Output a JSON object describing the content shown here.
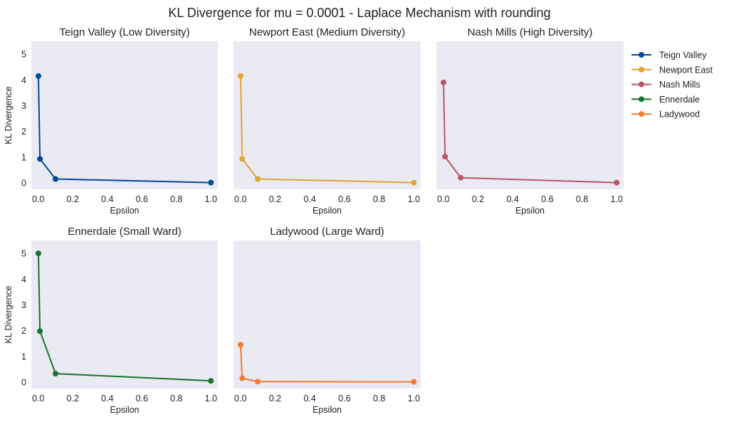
{
  "figure": {
    "title": "KL Divergence for mu = 0.0001 - Laplace Mechanism with rounding"
  },
  "chart_data": [
    {
      "type": "line",
      "title": "Teign Valley (Low Diversity)",
      "xlabel": "Epsilon",
      "ylabel": "KL Divergence",
      "xlim": [
        -0.04,
        1.04
      ],
      "ylim": [
        -0.25,
        5.5
      ],
      "xticks": [
        "0.0",
        "0.2",
        "0.4",
        "0.6",
        "0.8",
        "1.0"
      ],
      "yticks": [
        "0",
        "1",
        "2",
        "3",
        "4",
        "5"
      ],
      "grid": false,
      "series": [
        {
          "name": "Teign Valley",
          "color": "#004a97",
          "x": [
            0.001,
            0.01,
            0.1,
            1.0
          ],
          "y": [
            4.15,
            0.93,
            0.15,
            0.01
          ]
        }
      ]
    },
    {
      "type": "line",
      "title": "Newport East (Medium Diversity)",
      "xlabel": "Epsilon",
      "ylabel": "",
      "xlim": [
        -0.04,
        1.04
      ],
      "ylim": [
        -0.25,
        5.5
      ],
      "xticks": [
        "0.0",
        "0.2",
        "0.4",
        "0.6",
        "0.8",
        "1.0"
      ],
      "yticks": [],
      "grid": false,
      "series": [
        {
          "name": "Newport East",
          "color": "#e0a535",
          "x": [
            0.001,
            0.01,
            0.1,
            1.0
          ],
          "y": [
            4.15,
            0.93,
            0.15,
            0.01
          ]
        }
      ]
    },
    {
      "type": "line",
      "title": "Nash Mills (High Diversity)",
      "xlabel": "Epsilon",
      "ylabel": "",
      "xlim": [
        -0.04,
        1.04
      ],
      "ylim": [
        -0.25,
        5.5
      ],
      "xticks": [
        "0.0",
        "0.2",
        "0.4",
        "0.6",
        "0.8",
        "1.0"
      ],
      "yticks": [],
      "grid": false,
      "series": [
        {
          "name": "Nash Mills",
          "color": "#bb5566",
          "x": [
            0.001,
            0.01,
            0.1,
            1.0
          ],
          "y": [
            3.9,
            1.02,
            0.2,
            0.01
          ]
        }
      ]
    },
    {
      "type": "line",
      "title": "Ennerdale (Small Ward)",
      "xlabel": "Epsilon",
      "ylabel": "KL Divergence",
      "xlim": [
        -0.04,
        1.04
      ],
      "ylim": [
        -0.25,
        5.5
      ],
      "xticks": [
        "0.0",
        "0.2",
        "0.4",
        "0.6",
        "0.8",
        "1.0"
      ],
      "yticks": [
        "0",
        "1",
        "2",
        "3",
        "4",
        "5"
      ],
      "grid": false,
      "series": [
        {
          "name": "Ennerdale",
          "color": "#1a7230",
          "x": [
            0.001,
            0.01,
            0.1,
            1.0
          ],
          "y": [
            5.0,
            1.98,
            0.33,
            0.05
          ]
        }
      ]
    },
    {
      "type": "line",
      "title": "Ladywood (Large Ward)",
      "xlabel": "Epsilon",
      "ylabel": "",
      "xlim": [
        -0.04,
        1.04
      ],
      "ylim": [
        -0.25,
        5.5
      ],
      "xticks": [
        "0.0",
        "0.2",
        "0.4",
        "0.6",
        "0.8",
        "1.0"
      ],
      "yticks": [],
      "grid": false,
      "series": [
        {
          "name": "Ladywood",
          "color": "#f07b35",
          "x": [
            0.001,
            0.01,
            0.1,
            1.0
          ],
          "y": [
            1.45,
            0.15,
            0.02,
            0.01
          ]
        }
      ]
    }
  ],
  "legend": {
    "placement": "right",
    "entries": [
      {
        "label": "Teign Valley",
        "color": "#004a97"
      },
      {
        "label": "Newport East",
        "color": "#e0a535"
      },
      {
        "label": "Nash Mills",
        "color": "#bb5566"
      },
      {
        "label": "Ennerdale",
        "color": "#1a7230"
      },
      {
        "label": "Ladywood",
        "color": "#f07b35"
      }
    ]
  },
  "style": {
    "panel_background": "#eaeaf2",
    "text_color": "#222222"
  }
}
